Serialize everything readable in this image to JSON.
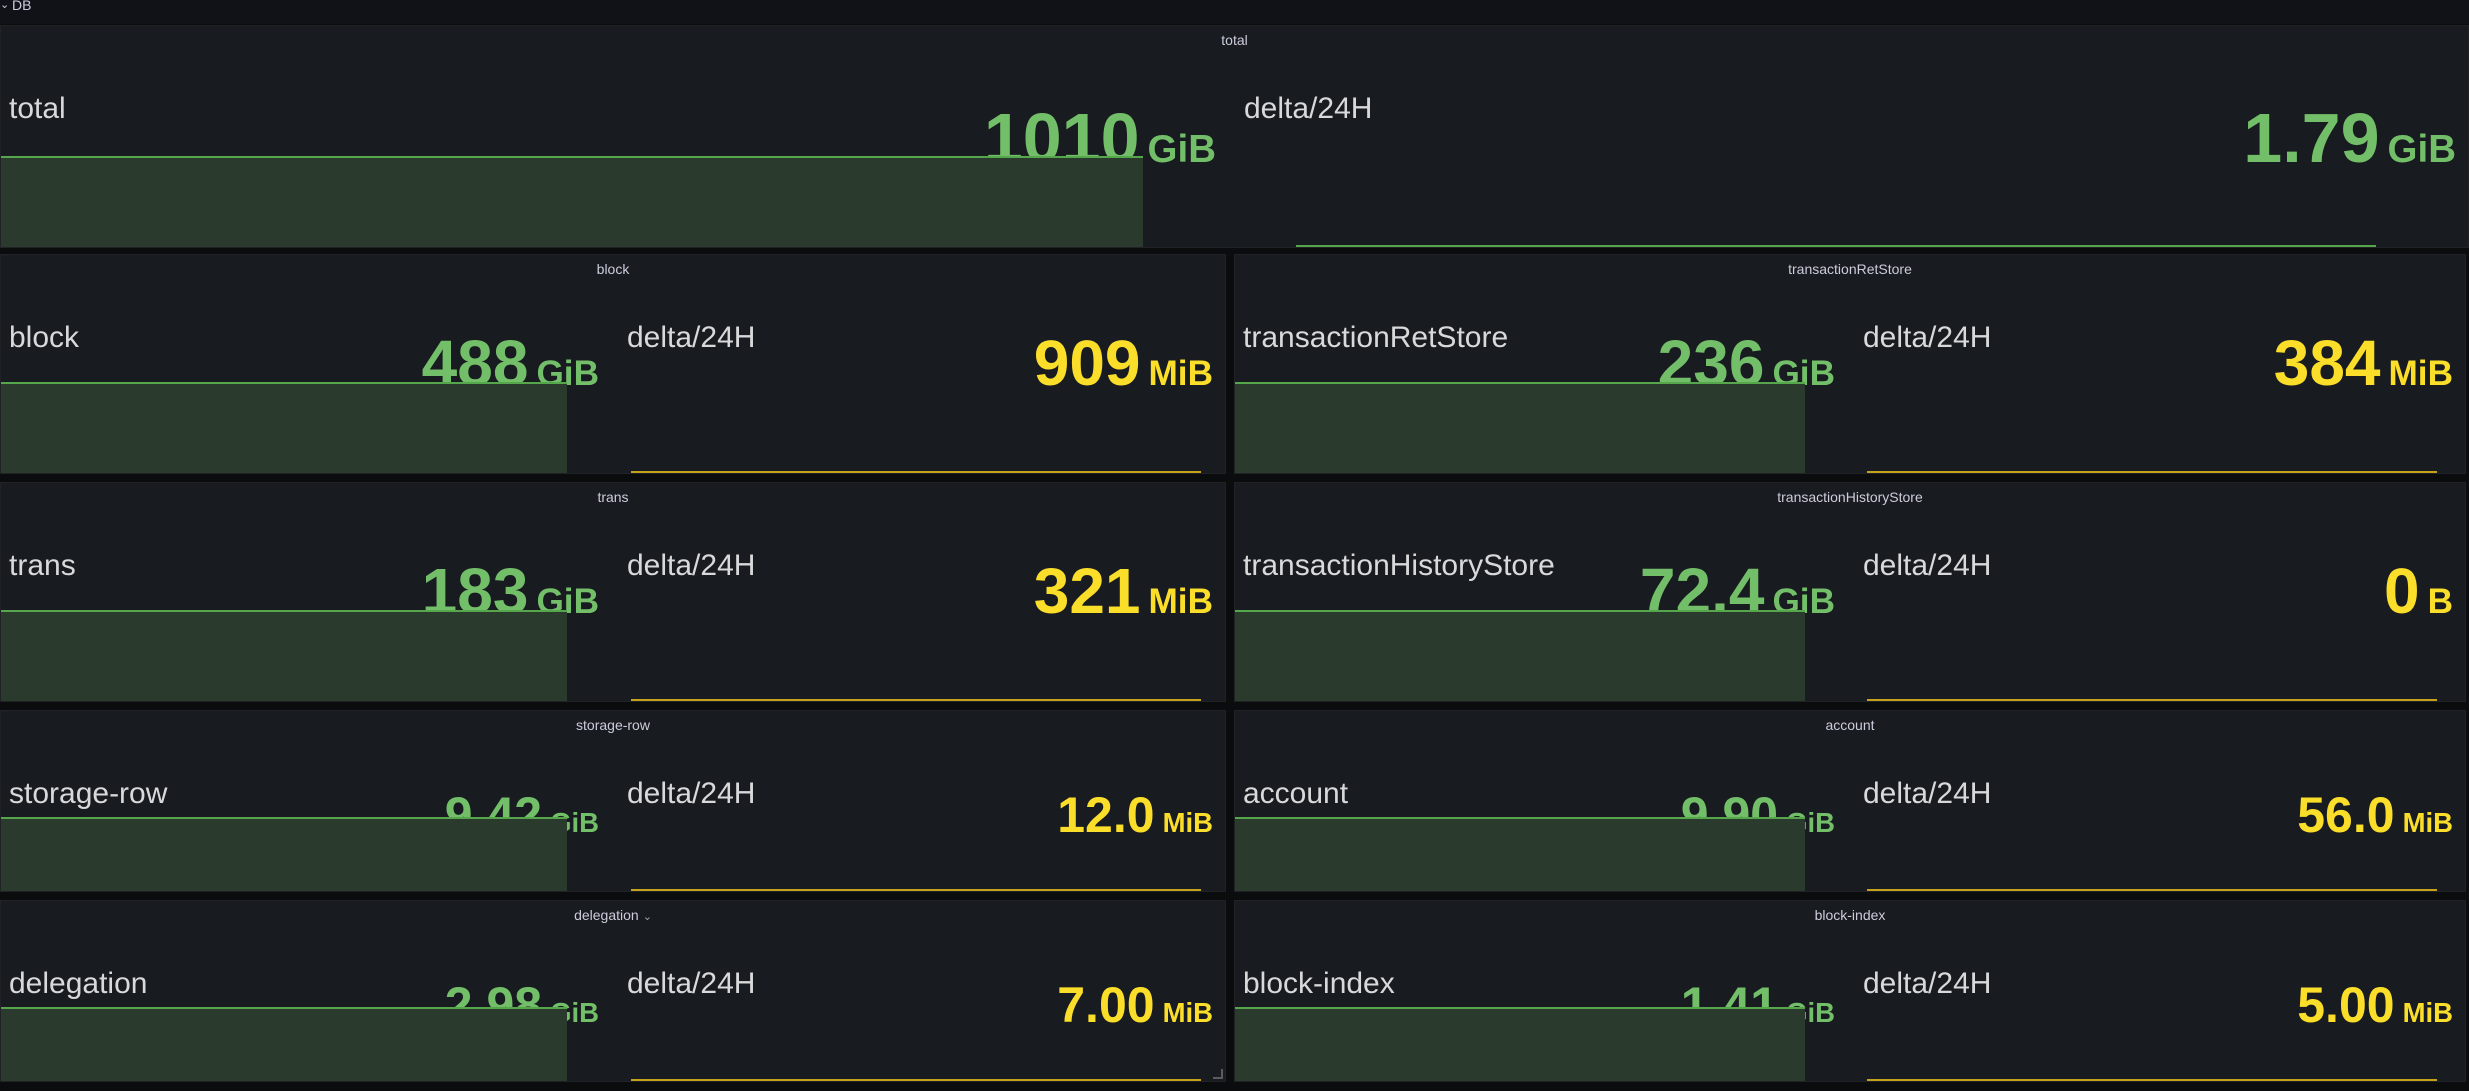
{
  "row": {
    "title": "DB"
  },
  "delta_label": "delta/24H",
  "panels": {
    "total": {
      "title": "total",
      "main": {
        "label": "total",
        "value": "1010",
        "unit": "GiB"
      },
      "delta": {
        "label": "delta/24H",
        "value": "1.79",
        "unit": "GiB"
      }
    },
    "block": {
      "title": "block",
      "main": {
        "label": "block",
        "value": "488",
        "unit": "GiB"
      },
      "delta": {
        "label": "delta/24H",
        "value": "909",
        "unit": "MiB"
      }
    },
    "transactionRetStore": {
      "title": "transactionRetStore",
      "main": {
        "label": "transactionRetStore",
        "value": "236",
        "unit": "GiB"
      },
      "delta": {
        "label": "delta/24H",
        "value": "384",
        "unit": "MiB"
      }
    },
    "trans": {
      "title": "trans",
      "main": {
        "label": "trans",
        "value": "183",
        "unit": "GiB"
      },
      "delta": {
        "label": "delta/24H",
        "value": "321",
        "unit": "MiB"
      }
    },
    "transactionHistoryStore": {
      "title": "transactionHistoryStore",
      "main": {
        "label": "transactionHistoryStore",
        "value": "72.4",
        "unit": "GiB"
      },
      "delta": {
        "label": "delta/24H",
        "value": "0",
        "unit": "B"
      }
    },
    "storage_row": {
      "title": "storage-row",
      "main": {
        "label": "storage-row",
        "value": "9.42",
        "unit": "GiB"
      },
      "delta": {
        "label": "delta/24H",
        "value": "12.0",
        "unit": "MiB"
      }
    },
    "account": {
      "title": "account",
      "main": {
        "label": "account",
        "value": "9.90",
        "unit": "GiB"
      },
      "delta": {
        "label": "delta/24H",
        "value": "56.0",
        "unit": "MiB"
      }
    },
    "delegation": {
      "title": "delegation",
      "main": {
        "label": "delegation",
        "value": "2.98",
        "unit": "GiB"
      },
      "delta": {
        "label": "delta/24H",
        "value": "7.00",
        "unit": "MiB"
      }
    },
    "block_index": {
      "title": "block-index",
      "main": {
        "label": "block-index",
        "value": "1.41",
        "unit": "GiB"
      },
      "delta": {
        "label": "delta/24H",
        "value": "5.00",
        "unit": "MiB"
      }
    }
  },
  "colors": {
    "value_ok": "#73bf69",
    "value_warn": "#fade2a",
    "sparkline_fill": "#2a3a2c",
    "panel_bg": "#181b1f"
  }
}
